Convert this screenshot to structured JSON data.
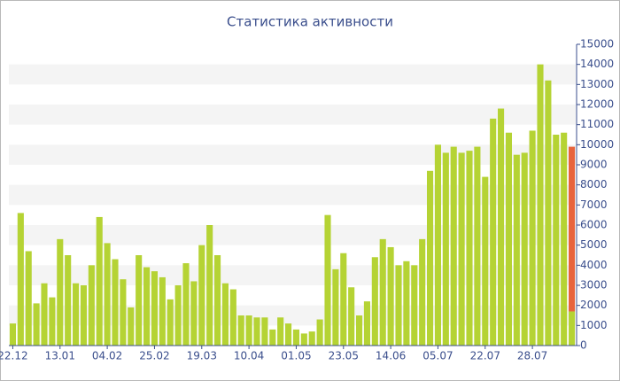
{
  "chart_data": {
    "type": "bar",
    "stacked": true,
    "title": "Статистика активности",
    "categories": [
      "22.12",
      null,
      null,
      null,
      null,
      null,
      "13.01",
      null,
      null,
      null,
      null,
      null,
      "04.02",
      null,
      null,
      null,
      null,
      null,
      "25.02",
      null,
      null,
      null,
      null,
      null,
      "19.03",
      null,
      null,
      null,
      null,
      null,
      "10.04",
      null,
      null,
      null,
      null,
      null,
      "01.05",
      null,
      null,
      null,
      null,
      null,
      "23.05",
      null,
      null,
      null,
      null,
      null,
      "14.06",
      null,
      null,
      null,
      null,
      null,
      "05.07",
      null,
      null,
      null,
      null,
      null,
      "22.07",
      null,
      null,
      null,
      null,
      null,
      "28.07",
      null,
      null,
      null,
      null,
      null
    ],
    "series": [
      {
        "color": "#b5d334",
        "values": [
          1100,
          6600,
          4700,
          2100,
          3100,
          2400,
          5300,
          4500,
          3100,
          3000,
          4000,
          6400,
          5100,
          4300,
          3300,
          1900,
          4500,
          3900,
          3700,
          3400,
          2300,
          3000,
          4100,
          3200,
          5000,
          6000,
          4500,
          3100,
          2800,
          1500,
          1500,
          1400,
          1400,
          800,
          1400,
          1100,
          800,
          600,
          700,
          1300,
          6500,
          3800,
          4600,
          2900,
          1500,
          2200,
          4400,
          5300,
          4900,
          4000,
          4200,
          4000,
          5300,
          8700,
          10000,
          9600,
          9900,
          9600,
          9700,
          9900,
          8400,
          11300,
          11800,
          10600,
          9500,
          9600,
          10700,
          14000,
          13200,
          10500,
          10600,
          1700
        ]
      },
      {
        "color": "#e8643c",
        "values": [
          null,
          null,
          null,
          null,
          null,
          null,
          null,
          null,
          null,
          null,
          null,
          null,
          null,
          null,
          null,
          null,
          null,
          null,
          null,
          null,
          null,
          null,
          null,
          null,
          null,
          null,
          null,
          null,
          null,
          null,
          null,
          null,
          null,
          null,
          null,
          null,
          null,
          null,
          null,
          null,
          null,
          null,
          null,
          null,
          null,
          null,
          null,
          null,
          null,
          null,
          null,
          null,
          null,
          null,
          null,
          null,
          null,
          null,
          null,
          null,
          null,
          null,
          null,
          null,
          null,
          null,
          null,
          null,
          null,
          null,
          null,
          8200
        ]
      }
    ],
    "ylim": [
      0,
      15000
    ],
    "yticks": [
      0,
      1000,
      2000,
      3000,
      4000,
      5000,
      6000,
      7000,
      8000,
      9000,
      10000,
      11000,
      12000,
      13000,
      14000,
      15000
    ],
    "grid": "bands",
    "y_axis_side": "right"
  }
}
